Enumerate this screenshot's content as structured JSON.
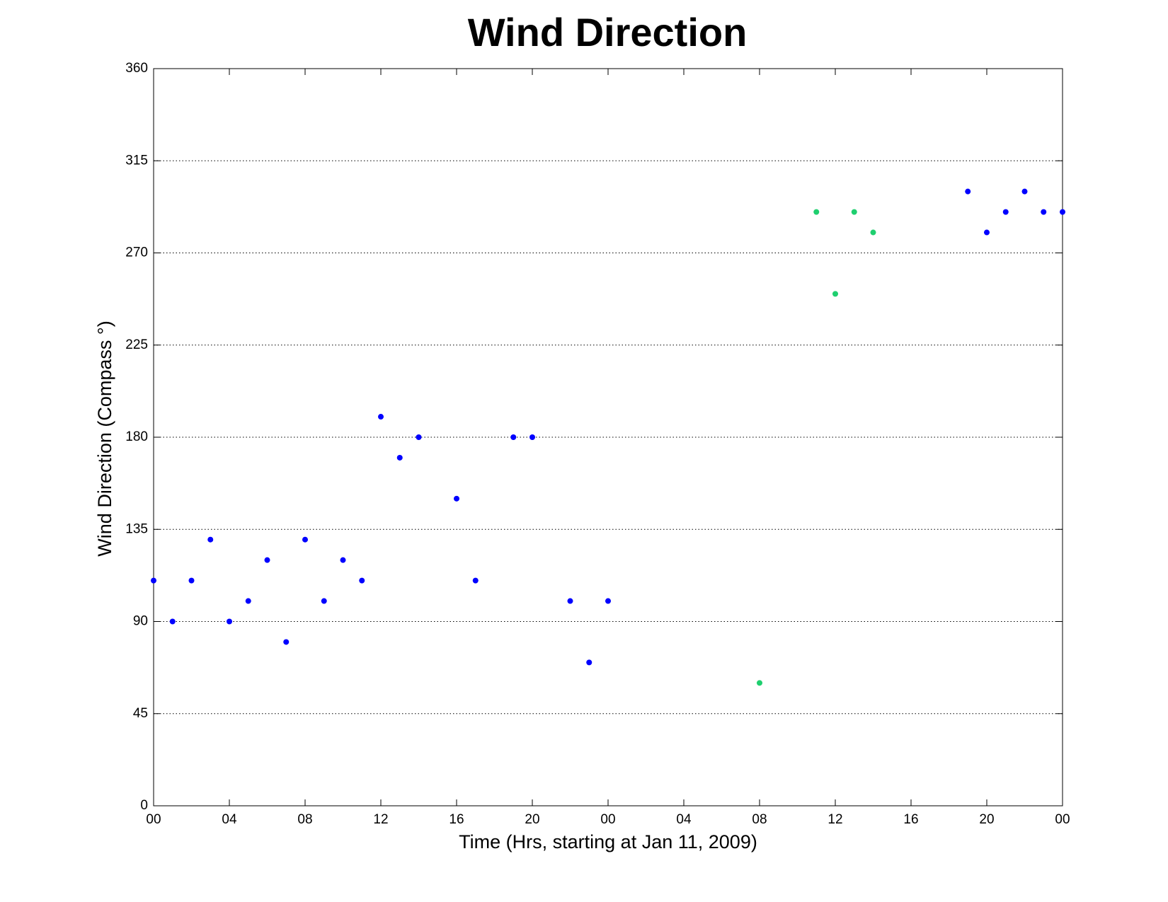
{
  "chart_data": {
    "type": "scatter",
    "title": "Wind Direction",
    "x_label": "Time (Hrs, starting at Jan 11, 2009)",
    "y_label": "Wind Direction (Compass  °)",
    "xlim": [
      0,
      48
    ],
    "ylim": [
      0,
      360
    ],
    "xticks": [
      {
        "value": 0,
        "label": "00"
      },
      {
        "value": 4,
        "label": "04"
      },
      {
        "value": 8,
        "label": "08"
      },
      12,
      16,
      20,
      {
        "value": 24,
        "label": "00"
      },
      {
        "value": 28,
        "label": "04"
      },
      {
        "value": 32,
        "label": "08"
      },
      {
        "value": 36,
        "label": "12"
      },
      {
        "value": 40,
        "label": "16"
      },
      {
        "value": 44,
        "label": "20"
      },
      {
        "value": 48,
        "label": "00"
      }
    ],
    "yticks": [
      0,
      45,
      90,
      135,
      180,
      225,
      270,
      315,
      360
    ],
    "grid": true,
    "series": [
      {
        "color": "#0000ff",
        "x": [
          0,
          1,
          2,
          3,
          4,
          5,
          6,
          7,
          8,
          9,
          10,
          11,
          12,
          13,
          14,
          16,
          17,
          19,
          20,
          22,
          23,
          24,
          43,
          44,
          45,
          46,
          47,
          48
        ],
        "values": [
          110,
          90,
          110,
          130,
          90,
          100,
          120,
          80,
          130,
          100,
          120,
          110,
          190,
          170,
          180,
          150,
          110,
          180,
          180,
          100,
          70,
          100,
          300,
          280,
          290,
          300,
          290,
          290
        ]
      },
      {
        "color": "#1fcf6f",
        "x": [
          32,
          35,
          36,
          37,
          38
        ],
        "values": [
          60,
          290,
          250,
          290,
          280
        ]
      }
    ]
  }
}
